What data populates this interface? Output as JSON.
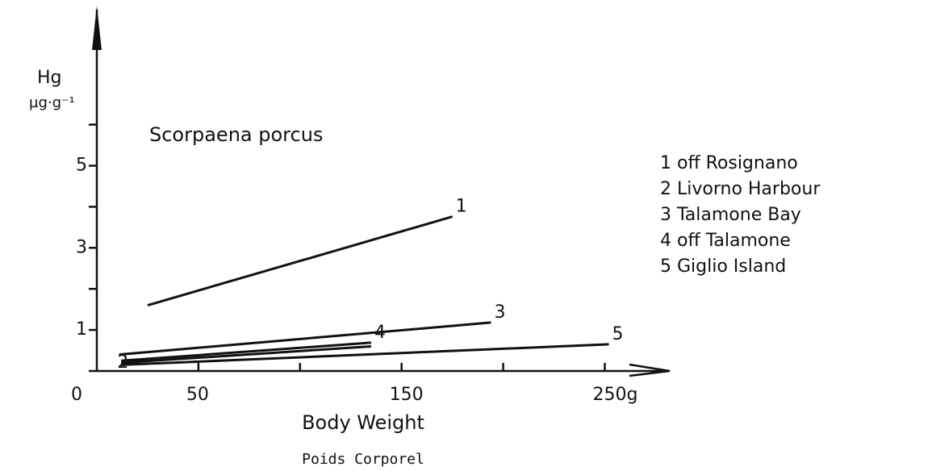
{
  "chart_data": {
    "type": "line",
    "title": "Scorpaena porcus",
    "ylabel": "Hg",
    "yunit": "µg·g⁻¹",
    "xlabel": "Body Weight",
    "xlabel2": "Poids Corporel",
    "xlim": [
      0,
      280
    ],
    "ylim": [
      0,
      8.8
    ],
    "xticks": [
      0,
      50,
      {
        "value": 100,
        "label": null
      },
      150,
      {
        "value": 200,
        "label": null
      },
      {
        "value": 250,
        "label": "250g"
      }
    ],
    "yticks": [
      {
        "value": 0,
        "label": null
      },
      1,
      {
        "value": 2,
        "label": null
      },
      3,
      {
        "value": 4,
        "label": null
      },
      5,
      {
        "value": 6,
        "label": null
      }
    ],
    "series": [
      {
        "name": "1 off Rosignano",
        "label": "1",
        "color": "#111",
        "x": [
          25,
          175
        ],
        "values": [
          1.6,
          3.76
        ]
      },
      {
        "name": "2 Livorno Harbour",
        "label": "2",
        "label_position": "start",
        "color": "#111",
        "x": [
          12,
          135
        ],
        "values": [
          0.2,
          0.6
        ]
      },
      {
        "name": "3 Talamone Bay",
        "label": "3",
        "color": "#111",
        "x": [
          11,
          194
        ],
        "values": [
          0.4,
          1.18
        ]
      },
      {
        "name": "4 off Talamone",
        "label": "4",
        "color": "#111",
        "x": [
          12,
          135
        ],
        "values": [
          0.25,
          0.69
        ]
      },
      {
        "name": "5 Giglio Island",
        "label": "5",
        "color": "#111",
        "x": [
          12,
          252
        ],
        "values": [
          0.15,
          0.65
        ]
      }
    ]
  }
}
